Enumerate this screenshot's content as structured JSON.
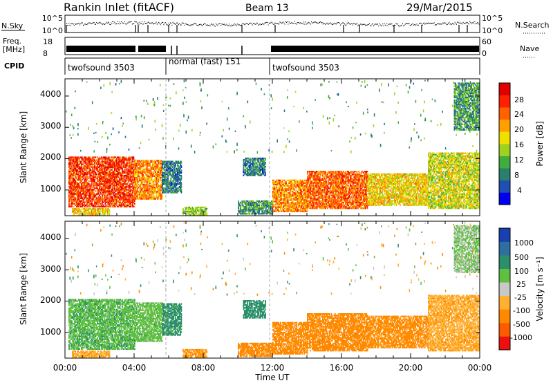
{
  "header": {
    "title": "Rankin Inlet (fitACF)",
    "beam": "Beam 13",
    "date": "29/Mar/2015"
  },
  "strip_labels": {
    "nsky": "N.Sky",
    "nsearch": "N.Search",
    "freq_line1": "Freq.",
    "freq_line2": "[MHz]",
    "nave": "Nave",
    "cpid": "CPID",
    "nsky_ticks": [
      "10^5",
      "10^0"
    ],
    "nsearch_ticks": [
      "10^5",
      "10^0"
    ],
    "freq_ticks": [
      "18",
      "8"
    ],
    "nave_ticks": [
      "60",
      "0"
    ]
  },
  "cpid_segments": [
    {
      "label": "twofsound 3503",
      "start": "00:00",
      "end": "06:00"
    },
    {
      "label": "normal (fast) 151",
      "start": "06:00",
      "end": "12:00"
    },
    {
      "label": "twofsound 3503",
      "start": "12:00",
      "end": "24:00"
    }
  ],
  "panels": {
    "power": {
      "ylabel": "Slant Range [km]",
      "yticks": [
        "4000",
        "3000",
        "2000",
        "1000"
      ],
      "colorbar_label": "Power [dB]",
      "colorbar_ticks": [
        "28",
        "24",
        "20",
        "16",
        "12",
        "8",
        "4"
      ],
      "colors": [
        "#0000f0",
        "#1f4fb4",
        "#2a7f6e",
        "#3fae3f",
        "#9fd21f",
        "#f0e000",
        "#ffa000",
        "#ff6000",
        "#ff2000",
        "#e00000"
      ]
    },
    "velocity": {
      "ylabel": "Slant Range [km]",
      "yticks": [
        "4000",
        "3000",
        "2000",
        "1000"
      ],
      "colorbar_label": "Velocity [m s⁻¹]",
      "colorbar_ticks": [
        "1000",
        "500",
        "100",
        "25",
        "-25",
        "-100",
        "-500",
        "-1000"
      ],
      "colors": [
        "#1a3fb0",
        "#2f6fa0",
        "#2a8f6a",
        "#5fc040",
        "#c8c8c8",
        "#ffb030",
        "#ff8a00",
        "#ff5a00",
        "#ee1010"
      ]
    }
  },
  "xaxis": {
    "label": "Time UT",
    "ticks": [
      "00:00",
      "04:00",
      "08:00",
      "12:00",
      "16:00",
      "20:00",
      "00:00"
    ]
  },
  "chart_data": {
    "type": "heatmap",
    "title": "Rankin Inlet (fitACF)",
    "subtitle": "Beam 13 — 29/Mar/2015",
    "xlabel": "Time UT",
    "ylabel": "Slant Range [km]",
    "xlim_hours": [
      0,
      24
    ],
    "ylim_km": [
      180,
      4550
    ],
    "x_ticks": [
      "00:00",
      "04:00",
      "08:00",
      "12:00",
      "16:00",
      "20:00",
      "00:00"
    ],
    "y_ticks_km": [
      1000,
      2000,
      3000,
      4000
    ],
    "power_colorbar_dB": [
      4,
      8,
      12,
      16,
      20,
      24,
      28
    ],
    "velocity_colorbar_ms": [
      -1000,
      -500,
      -100,
      -25,
      25,
      100,
      500,
      1000
    ],
    "mode_changes_hours": [
      6,
      12
    ],
    "echo_regions": [
      {
        "t_start": 0.2,
        "t_end": 4.0,
        "r_min": 450,
        "r_max": 2050,
        "power_dB": 26,
        "velocity_ms": 80
      },
      {
        "t_start": 4.0,
        "t_end": 5.6,
        "r_min": 700,
        "r_max": 1950,
        "power_dB": 22,
        "velocity_ms": 60
      },
      {
        "t_start": 5.6,
        "t_end": 6.7,
        "r_min": 900,
        "r_max": 1900,
        "power_dB": 8,
        "velocity_ms": 150
      },
      {
        "t_start": 0.4,
        "t_end": 2.6,
        "r_min": 200,
        "r_max": 420,
        "power_dB": 18,
        "velocity_ms": -80
      },
      {
        "t_start": 6.8,
        "t_end": 8.2,
        "r_min": 200,
        "r_max": 450,
        "power_dB": 14,
        "velocity_ms": -120
      },
      {
        "t_start": 10.0,
        "t_end": 12.0,
        "r_min": 220,
        "r_max": 650,
        "power_dB": 10,
        "velocity_ms": -300
      },
      {
        "t_start": 10.3,
        "t_end": 11.6,
        "r_min": 1450,
        "r_max": 2000,
        "power_dB": 8,
        "velocity_ms": 200
      },
      {
        "t_start": 12.0,
        "t_end": 14.0,
        "r_min": 300,
        "r_max": 1300,
        "power_dB": 22,
        "velocity_ms": -300
      },
      {
        "t_start": 14.0,
        "t_end": 17.5,
        "r_min": 400,
        "r_max": 1600,
        "power_dB": 24,
        "velocity_ms": -350
      },
      {
        "t_start": 17.5,
        "t_end": 21.0,
        "r_min": 500,
        "r_max": 1500,
        "power_dB": 18,
        "velocity_ms": -150
      },
      {
        "t_start": 21.0,
        "t_end": 24.0,
        "r_min": 400,
        "r_max": 2200,
        "power_dB": 16,
        "velocity_ms": -80
      },
      {
        "t_start": 22.5,
        "t_end": 24.0,
        "r_min": 2900,
        "r_max": 4400,
        "power_dB": 10,
        "velocity_ms": 30
      }
    ]
  }
}
